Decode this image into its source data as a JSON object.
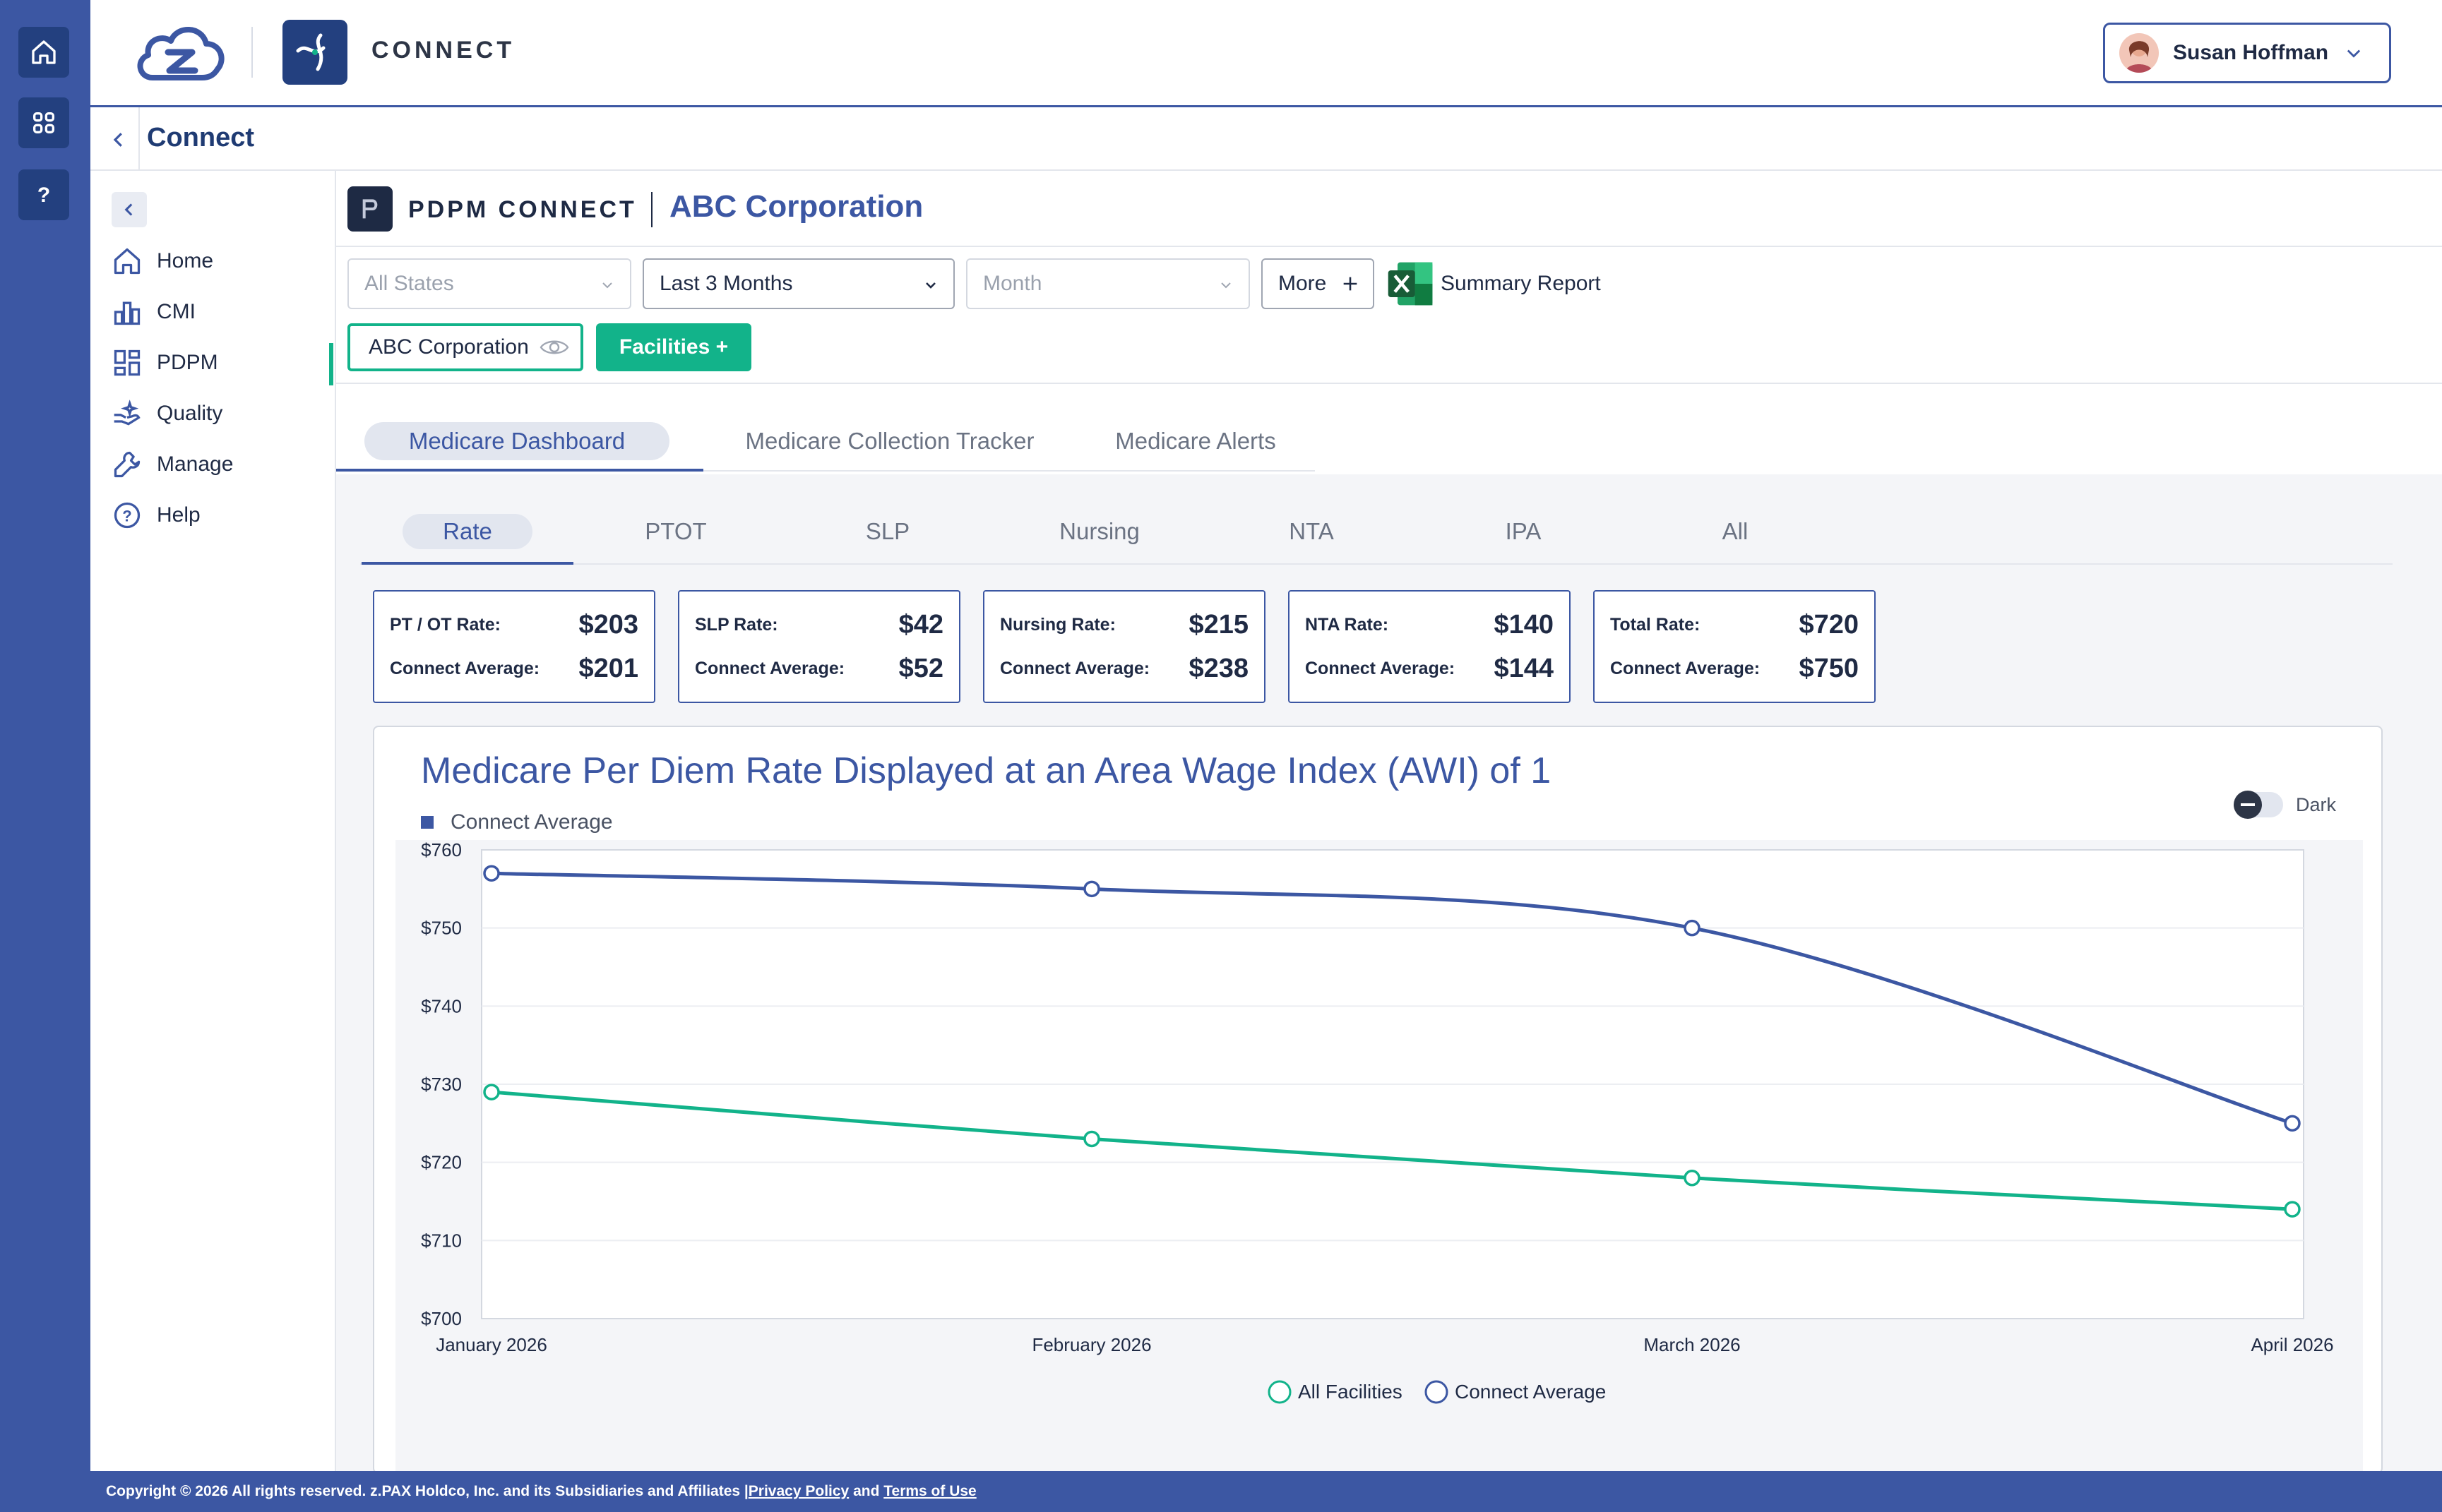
{
  "rail": {
    "icons": [
      "home-icon",
      "apps-grid-icon",
      "help-icon"
    ]
  },
  "header": {
    "app_name": "CONNECT",
    "user_name": "Susan Hoffman"
  },
  "breadcrumb": {
    "title": "Connect"
  },
  "sidebar": {
    "items": [
      {
        "label": "Home",
        "icon": "home-icon"
      },
      {
        "label": "CMI",
        "icon": "bar-chart-icon"
      },
      {
        "label": "PDPM",
        "icon": "dashboard-icon"
      },
      {
        "label": "Quality",
        "icon": "quality-icon"
      },
      {
        "label": "Manage",
        "icon": "wrench-icon"
      },
      {
        "label": "Help",
        "icon": "help-circle-icon"
      }
    ]
  },
  "pdpm": {
    "brand": "PDPM CONNECT",
    "corporation": "ABC Corporation"
  },
  "filters": {
    "states": "All States",
    "period": "Last 3 Months",
    "month": "Month",
    "more": "More",
    "summary_report": "Summary Report",
    "corp_chip": "ABC Corporation",
    "facilities_button": "Facilities +"
  },
  "dashboard_tabs": [
    "Medicare Dashboard",
    "Medicare Collection Tracker",
    "Medicare Alerts"
  ],
  "sub_tabs": [
    "Rate",
    "PTOT",
    "SLP",
    "Nursing",
    "NTA",
    "IPA",
    "All"
  ],
  "cards": [
    {
      "label": "PT / OT Rate:",
      "value": "$203",
      "avg_label": "Connect Average:",
      "avg_value": "$201"
    },
    {
      "label": "SLP Rate:",
      "value": "$42",
      "avg_label": "Connect Average:",
      "avg_value": "$52"
    },
    {
      "label": "Nursing Rate:",
      "value": "$215",
      "avg_label": "Connect Average:",
      "avg_value": "$238"
    },
    {
      "label": "NTA Rate:",
      "value": "$140",
      "avg_label": "Connect Average:",
      "avg_value": "$144"
    },
    {
      "label": "Total Rate:",
      "value": "$720",
      "avg_label": "Connect Average:",
      "avg_value": "$750"
    }
  ],
  "chart_header": {
    "title": "Medicare Per Diem Rate Displayed at an Area Wage Index (AWI) of 1",
    "legend_top": "Connect Average",
    "dark_label": "Dark"
  },
  "chart_data": {
    "type": "line",
    "title": "Medicare Per Diem Rate Displayed at an Area Wage Index (AWI) of 1",
    "categories": [
      "January 2026",
      "February 2026",
      "March 2026",
      "April 2026"
    ],
    "ylim": [
      700,
      760
    ],
    "y_ticks": [
      "$760",
      "$750",
      "$740",
      "$730",
      "$720",
      "$710",
      "$700"
    ],
    "y_tick_values": [
      760,
      750,
      740,
      730,
      720,
      710,
      700
    ],
    "series": [
      {
        "name": "Connect Average",
        "color": "#3c57a3",
        "values": [
          757,
          755,
          750,
          725
        ]
      },
      {
        "name": "All Facilities",
        "color": "#12b38a",
        "values": [
          729,
          723,
          718,
          714
        ]
      }
    ],
    "legend_bottom": [
      "All Facilities",
      "Connect Average"
    ],
    "grid": true
  },
  "footer": {
    "text": "Copyright © 2026 All rights reserved. z.PAX Holdco, Inc. and its Subsidiaries and Affiliates | ",
    "privacy": "Privacy Policy",
    "and": " and ",
    "terms": "Terms of Use"
  },
  "colors": {
    "primary": "#3c57a3",
    "accent": "#12b38a",
    "dark": "#1e2a44"
  }
}
